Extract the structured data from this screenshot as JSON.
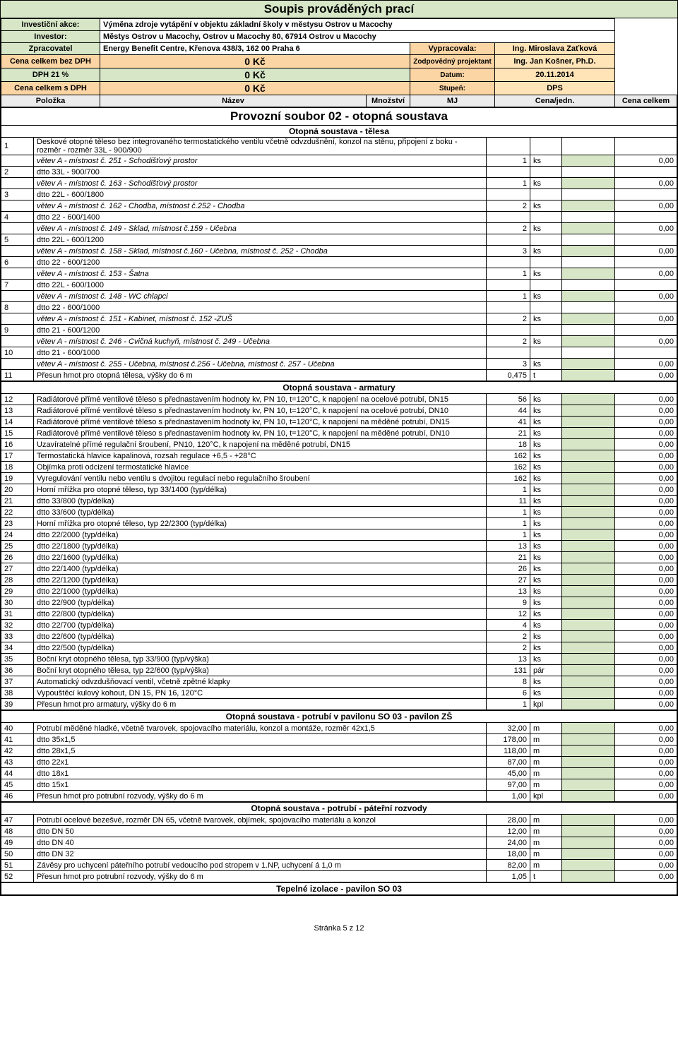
{
  "colors": {
    "green": "#d6e6c6",
    "orange": "#fcd5a4",
    "orange2": "#ffe4b8",
    "grey": "#ececec"
  },
  "title": "Soupis prováděných prací",
  "header": {
    "rows": [
      {
        "lbl": "Investiční akce:",
        "val": "Výměna zdroje vytápění v objektu základní školy v městysu Ostrov u Macochy",
        "lblBg": "green",
        "valBg": ""
      },
      {
        "lbl": "Investor:",
        "val": "Městys Ostrov u Macochy, Ostrov u Macochy 80, 67914 Ostrov u Macochy",
        "lblBg": "green",
        "valBg": ""
      },
      {
        "lbl": "Zpracovatel",
        "val": "Energy Benefit Centre, Křenova 438/3, 162 00 Praha 6",
        "lblBg": "green",
        "valBg": "",
        "r2lbl": "Vypracovala:",
        "r2val": "Ing. Miroslava Zaťková",
        "r2lblBg": "orange",
        "r2valBg": "orange2"
      },
      {
        "lbl": "Cena celkem bez DPH",
        "big": "0 Kč",
        "lblBg": "orange",
        "bigBg": "orange",
        "r2lbl": "Zodpovědný projektant",
        "r2val": "Ing. Jan Košner, Ph.D.",
        "r2lblBg": "orange",
        "r2valBg": "orange2"
      },
      {
        "lbl": "DPH 21 %",
        "big": "0 Kč",
        "lblBg": "green",
        "bigBg": "green",
        "r2lbl": "Datum:",
        "r2val": "20.11.2014",
        "r2lblBg": "orange",
        "r2valBg": "orange2"
      },
      {
        "lbl": "Cena celkem s DPH",
        "big": "0 Kč",
        "lblBg": "orange",
        "bigBg": "orange",
        "r2lbl": "Stupeň:",
        "r2val": "DPS",
        "r2lblBg": "orange",
        "r2valBg": "orange2"
      }
    ],
    "cols": {
      "c1": "Položka",
      "c2": "Název",
      "c3": "Množství",
      "c4": "MJ",
      "c5": "Cena/jedn.",
      "c6": "Cena celkem",
      "bg": "grey"
    }
  },
  "sectionTitle": "Provozní soubor 02 - otopná soustava",
  "blocks": [
    {
      "title": "Otopná soustava - tělesa",
      "rows": [
        {
          "n": "1",
          "d": "Deskové otopné těleso bez integrovaného termostatického ventilu včetně odvzdušnění, konzol na stěnu, připojení z boku  - rozměr  - rozměr 33L - 900/900",
          "loc": "větev A - místnost č. 251 - Schodišťový prostor",
          "q": "1",
          "u": "ks",
          "t": "0,00"
        },
        {
          "n": "2",
          "d": "dtto 33L - 900/700",
          "loc": "větev A - místnost č. 163 - Schodišťový prostor",
          "q": "1",
          "u": "ks",
          "t": "0,00"
        },
        {
          "n": "3",
          "d": "dtto 22L - 600/1800",
          "loc": "větev A - místnost č. 162 - Chodba, místnost č.252 - Chodba",
          "q": "2",
          "u": "ks",
          "t": "0,00"
        },
        {
          "n": "4",
          "d": "dtto 22 - 600/1400",
          "loc": "větev A - místnost č. 149 - Sklad, místnost č.159 - Učebna",
          "q": "2",
          "u": "ks",
          "t": "0,00"
        },
        {
          "n": "5",
          "d": "dtto 22L - 600/1200",
          "loc": "větev A - místnost č. 158 - Sklad, místnost č.160 - Učebna, místnost č. 252 - Chodba",
          "q": "3",
          "u": "ks",
          "t": "0,00"
        },
        {
          "n": "6",
          "d": "dtto 22 - 600/1200",
          "loc": "větev A - místnost č. 153 - Šatna",
          "q": "1",
          "u": "ks",
          "t": "0,00"
        },
        {
          "n": "7",
          "d": "dtto 22L - 600/1000",
          "loc": "větev A - místnost č. 148 - WC chlapci",
          "q": "1",
          "u": "ks",
          "t": "0,00"
        },
        {
          "n": "8",
          "d": "dtto 22 - 600/1000",
          "loc": "větev A - místnost č. 151 - Kabinet, místnost č. 152 -ZUŠ",
          "q": "2",
          "u": "ks",
          "t": "0,00"
        },
        {
          "n": "9",
          "d": "dtto 21 - 600/1200",
          "loc": "větev A - místnost č. 246 - Cvičná kuchyň, místnost č. 249 - Učebna",
          "q": "2",
          "u": "ks",
          "t": "0,00"
        },
        {
          "n": "10",
          "d": "dtto 21 - 600/1000",
          "loc": "větev A - místnost č. 255 - Učebna, místnost č.256 - Učebna, místnost č. 257 - Učebna",
          "q": "3",
          "u": "ks",
          "t": "0,00"
        },
        {
          "n": "11",
          "d": "Přesun hmot pro otopná tělesa, výšky do 6 m",
          "q": "0,475",
          "u": "t",
          "t": "0,00"
        }
      ]
    },
    {
      "title": "Otopná soustava - armatury",
      "rows": [
        {
          "n": "12",
          "d": "Radiátorové přímé ventilové těleso s přednastavením hodnoty kv, PN 10, t=120°C, k napojení na ocelové potrubí, DN15",
          "q": "56",
          "u": "ks",
          "t": "0,00"
        },
        {
          "n": "13",
          "d": "Radiátorové přímé ventilové těleso s přednastavením hodnoty kv, PN 10, t=120°C, k napojení na ocelové potrubí, DN10",
          "q": "44",
          "u": "ks",
          "t": "0,00"
        },
        {
          "n": "14",
          "d": "Radiátorové přímé ventilové těleso s přednastavením hodnoty kv, PN 10, t=120°C, k napojení na měděné potrubí, DN15",
          "q": "41",
          "u": "ks",
          "t": "0,00"
        },
        {
          "n": "15",
          "d": "Radiátorové přímé ventilové těleso s přednastavením hodnoty kv, PN 10, t=120°C, k napojení na měděné potrubí, DN10",
          "q": "21",
          "u": "ks",
          "t": "0,00"
        },
        {
          "n": "16",
          "d": "Uzavíratelné přímé regulační šroubení, PN10, 120°C, k napojení na měděné potrubí, DN15",
          "q": "18",
          "u": "ks",
          "t": "0,00"
        },
        {
          "n": "17",
          "d": "Termostatická hlavice kapalinová, rozsah regulace +6,5 - +28°C",
          "q": "162",
          "u": "ks",
          "t": "0,00"
        },
        {
          "n": "18",
          "d": "Objímka proti odcizení termostatické hlavice",
          "q": "162",
          "u": "ks",
          "t": "0,00"
        },
        {
          "n": "19",
          "d": "Vyregulování ventilu nebo ventilu s dvojitou regulací nebo regulačního šroubení",
          "q": "162",
          "u": "ks",
          "t": "0,00"
        },
        {
          "n": "20",
          "d": "Horní mřížka pro otopné těleso, typ 33/1400 (typ/délka)",
          "q": "1",
          "u": "ks",
          "t": "0,00"
        },
        {
          "n": "21",
          "d": "dtto 33/800 (typ/délka)",
          "q": "11",
          "u": "ks",
          "t": "0,00"
        },
        {
          "n": "22",
          "d": "dtto 33/600 (typ/délka)",
          "q": "1",
          "u": "ks",
          "t": "0,00"
        },
        {
          "n": "23",
          "d": "Horní mřížka pro otopné těleso, typ 22/2300 (typ/délka)",
          "q": "1",
          "u": "ks",
          "t": "0,00"
        },
        {
          "n": "24",
          "d": "dtto 22/2000 (typ/délka)",
          "q": "1",
          "u": "ks",
          "t": "0,00"
        },
        {
          "n": "25",
          "d": "dtto 22/1800 (typ/délka)",
          "q": "13",
          "u": "ks",
          "t": "0,00"
        },
        {
          "n": "26",
          "d": "dtto 22/1600 (typ/délka)",
          "q": "21",
          "u": "ks",
          "t": "0,00"
        },
        {
          "n": "27",
          "d": "dtto 22/1400 (typ/délka)",
          "q": "26",
          "u": "ks",
          "t": "0,00"
        },
        {
          "n": "28",
          "d": "dtto 22/1200 (typ/délka)",
          "q": "27",
          "u": "ks",
          "t": "0,00"
        },
        {
          "n": "29",
          "d": "dtto 22/1000 (typ/délka)",
          "q": "13",
          "u": "ks",
          "t": "0,00"
        },
        {
          "n": "30",
          "d": "dtto 22/900 (typ/délka)",
          "q": "9",
          "u": "ks",
          "t": "0,00"
        },
        {
          "n": "31",
          "d": "dtto 22/800 (typ/délka)",
          "q": "12",
          "u": "ks",
          "t": "0,00"
        },
        {
          "n": "32",
          "d": "dtto 22/700 (typ/délka)",
          "q": "4",
          "u": "ks",
          "t": "0,00"
        },
        {
          "n": "33",
          "d": "dtto 22/600 (typ/délka)",
          "q": "2",
          "u": "ks",
          "t": "0,00"
        },
        {
          "n": "34",
          "d": "dtto 22/500 (typ/délka)",
          "q": "2",
          "u": "ks",
          "t": "0,00"
        },
        {
          "n": "35",
          "d": "Boční kryt otopného tělesa, typ 33/900 (typ/výška)",
          "q": "13",
          "u": "ks",
          "t": "0,00"
        },
        {
          "n": "36",
          "d": "Boční kryt otopného tělesa, typ 22/600 (typ/výška)",
          "q": "131",
          "u": "pár",
          "t": "0,00"
        },
        {
          "n": "37",
          "d": "Automatický odvzdušňovací ventil, včetně zpětné klapky",
          "q": "8",
          "u": "ks",
          "t": "0,00"
        },
        {
          "n": "38",
          "d": "Vypouštěcí kulový kohout, DN 15, PN 16, 120°C",
          "q": "6",
          "u": "ks",
          "t": "0,00"
        },
        {
          "n": "39",
          "d": "Přesun hmot pro armatury, výšky do 6 m",
          "q": "1",
          "u": "kpl",
          "t": "0,00"
        }
      ]
    },
    {
      "title": "Otopná soustava - potrubí v pavilonu SO 03 - pavilon ZŠ",
      "rows": [
        {
          "n": "40",
          "d": "Potrubí měděné hladké, včetně tvarovek, spojovacího materiálu, konzol a montáže, rozměr 42x1,5",
          "q": "32,00",
          "u": "m",
          "t": "0,00"
        },
        {
          "n": "41",
          "d": "dtto  35x1,5",
          "q": "178,00",
          "u": "m",
          "t": "0,00"
        },
        {
          "n": "42",
          "d": "dtto  28x1,5",
          "q": "118,00",
          "u": "m",
          "t": "0,00"
        },
        {
          "n": "43",
          "d": "dtto  22x1",
          "q": "87,00",
          "u": "m",
          "t": "0,00"
        },
        {
          "n": "44",
          "d": "dtto  18x1",
          "q": "45,00",
          "u": "m",
          "t": "0,00"
        },
        {
          "n": "45",
          "d": "dtto  15x1",
          "q": "97,00",
          "u": "m",
          "t": "0,00"
        },
        {
          "n": "46",
          "d": "Přesun hmot pro potrubní rozvody, výšky do 6 m",
          "q": "1,00",
          "u": "kpl",
          "t": "0,00"
        }
      ]
    },
    {
      "title": "Otopná soustava - potrubí - páteřní rozvody",
      "rows": [
        {
          "n": "47",
          "d": "Potrubí ocelové bezešvé, rozměr DN 65, včetně tvarovek, objímek, spojovacího materiálu a konzol",
          "q": "28,00",
          "u": "m",
          "t": "0,00"
        },
        {
          "n": "48",
          "d": "dtto DN 50",
          "q": "12,00",
          "u": "m",
          "t": "0,00"
        },
        {
          "n": "49",
          "d": "dtto DN 40",
          "q": "24,00",
          "u": "m",
          "t": "0,00"
        },
        {
          "n": "50",
          "d": "dtto DN 32",
          "q": "18,00",
          "u": "m",
          "t": "0,00"
        },
        {
          "n": "51",
          "d": "Závěsy pro uchycení páteřního potrubí vedoucího pod stropem v 1.NP, uchycení á 1,0 m",
          "q": "82,00",
          "u": "m",
          "t": "0,00"
        },
        {
          "n": "52",
          "d": "Přesun hmot pro potrubní rozvody, výšky do 6 m",
          "q": "1,05",
          "u": "t",
          "t": "0,00"
        }
      ]
    }
  ],
  "lastSub": "Tepelné izolace - pavilon SO 03",
  "footer": "Stránka 5 z 12"
}
